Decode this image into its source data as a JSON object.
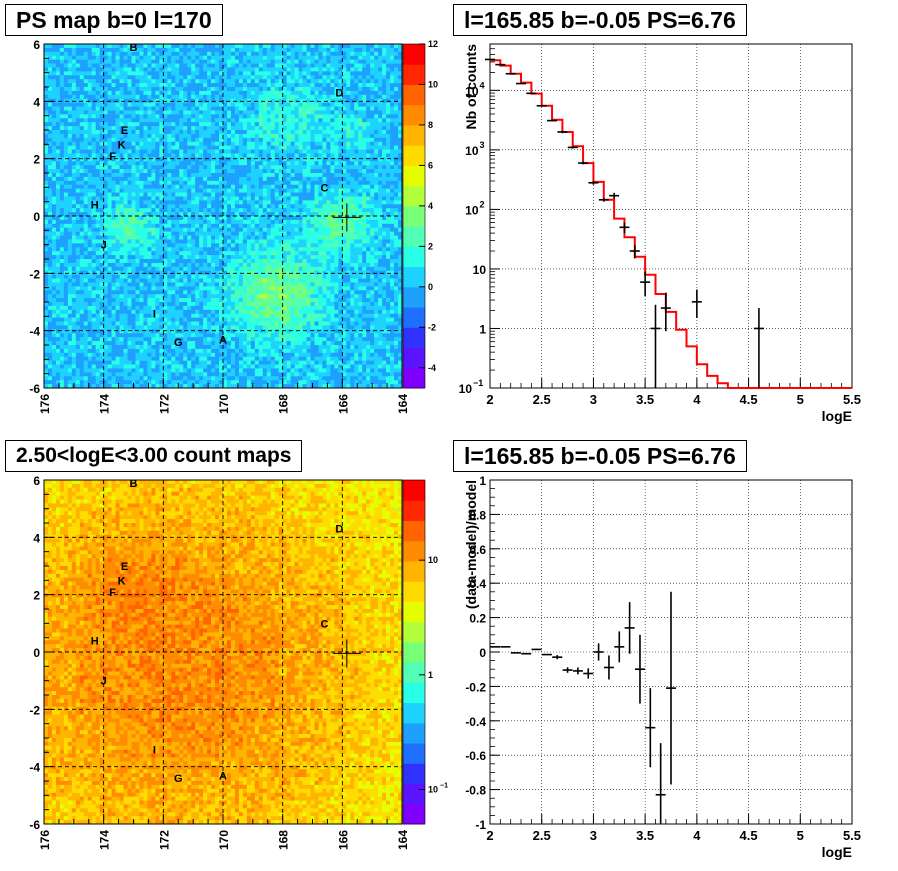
{
  "chart_data": [
    {
      "type": "heatmap",
      "title": "PS map b=0 l=170",
      "xlim": [
        176,
        164
      ],
      "ylim": [
        -6,
        6
      ],
      "x_ticks": [
        "176",
        "174",
        "172",
        "170",
        "168",
        "166",
        "164"
      ],
      "y_ticks": [
        "6",
        "4",
        "2",
        "0",
        "-2",
        "-4",
        "-6"
      ],
      "colorbar_ticks": [
        "12",
        "10",
        "8",
        "6",
        "4",
        "2",
        "0",
        "-2",
        "-4"
      ],
      "zlim": [
        -5,
        12
      ],
      "grid": true,
      "sources": [
        {
          "label": "A",
          "l": 170.0,
          "b": -4.3
        },
        {
          "label": "B",
          "l": 173.0,
          "b": 5.9
        },
        {
          "label": "C",
          "l": 166.6,
          "b": 1.0
        },
        {
          "label": "D",
          "l": 166.1,
          "b": 4.3
        },
        {
          "label": "E",
          "l": 173.3,
          "b": 3.0
        },
        {
          "label": "K",
          "l": 173.4,
          "b": 2.5
        },
        {
          "label": "F",
          "l": 173.7,
          "b": 2.1
        },
        {
          "label": "H",
          "l": 174.3,
          "b": 0.4
        },
        {
          "label": "J",
          "l": 174.0,
          "b": -1.0
        },
        {
          "label": "I",
          "l": 172.3,
          "b": -3.4
        },
        {
          "label": "G",
          "l": 171.5,
          "b": -4.4
        }
      ],
      "marker": {
        "l": 165.85,
        "b": -0.05
      }
    },
    {
      "type": "line",
      "title": "l=165.85 b=-0.05 PS=6.76",
      "xlabel": "logE",
      "ylabel": "Nb of counts",
      "xlim": [
        2,
        5.5
      ],
      "ylim": [
        0.1,
        60000
      ],
      "y_scale": "log",
      "x_ticks": [
        "2",
        "2.5",
        "3",
        "3.5",
        "4",
        "4.5",
        "5",
        "5.5"
      ],
      "y_ticks": [
        {
          "value": 10000,
          "base": "10",
          "exp": "4"
        },
        {
          "value": 1000,
          "base": "10",
          "exp": "3"
        },
        {
          "value": 100,
          "base": "10",
          "exp": "2"
        },
        {
          "value": 10,
          "base": "10",
          "exp": ""
        },
        {
          "value": 1,
          "base": "1",
          "exp": ""
        },
        {
          "value": 0.1,
          "base": "10",
          "exp": "−1"
        }
      ],
      "grid": true,
      "series": [
        {
          "kind": "histogram",
          "color": "#ff0000",
          "bin_edges": [
            2.0,
            2.1,
            2.2,
            2.3,
            2.4,
            2.5,
            2.6,
            2.7,
            2.8,
            2.9,
            3.0,
            3.1,
            3.2,
            3.3,
            3.4,
            3.5,
            3.6,
            3.7,
            3.8,
            3.9,
            4.0,
            4.1,
            4.2,
            4.3,
            5.5
          ],
          "values": [
            32000,
            26000,
            19000,
            13500,
            8800,
            5500,
            3200,
            2000,
            1150,
            600,
            290,
            145,
            70,
            34,
            16,
            8,
            3.8,
            1.9,
            0.95,
            0.5,
            0.25,
            0.16,
            0.12,
            0.1
          ]
        },
        {
          "kind": "points",
          "color": "#000000",
          "x": [
            2.0,
            2.1,
            2.2,
            2.3,
            2.4,
            2.5,
            2.6,
            2.7,
            2.8,
            2.9,
            3.0,
            3.1,
            3.2,
            3.3,
            3.4,
            3.5,
            3.6,
            3.7,
            3.8,
            4.0,
            4.6
          ],
          "y": [
            33000,
            27000,
            19000,
            13000,
            8900,
            5500,
            3100,
            2000,
            1100,
            600,
            280,
            145,
            170,
            50,
            20,
            6,
            1,
            2.2,
            0,
            2.8,
            1
          ],
          "y_low": [
            32800,
            26800,
            18800,
            12800,
            8700,
            5300,
            3000,
            1900,
            1050,
            570,
            260,
            135,
            150,
            40,
            15,
            3.5,
            0.1,
            0.9,
            0,
            1.5,
            0.1
          ],
          "y_high": [
            33200,
            27200,
            19200,
            13200,
            9100,
            5700,
            3200,
            2100,
            1150,
            630,
            300,
            155,
            190,
            60,
            25,
            9,
            2.5,
            4,
            0,
            4.5,
            2.2
          ]
        }
      ]
    },
    {
      "type": "heatmap",
      "title": "2.50<logE<3.00 count maps",
      "xlim": [
        176,
        164
      ],
      "ylim": [
        -6,
        6
      ],
      "x_ticks": [
        "176",
        "174",
        "172",
        "170",
        "168",
        "166",
        "164"
      ],
      "y_ticks": [
        "6",
        "4",
        "2",
        "0",
        "-2",
        "-4",
        "-6"
      ],
      "colorbar_ticks": [
        {
          "value": 10,
          "base": "10",
          "exp": ""
        },
        {
          "value": 1,
          "base": "1",
          "exp": ""
        },
        {
          "value": 0.1,
          "base": "10",
          "exp": "−1"
        }
      ],
      "z_scale": "log",
      "zlim": [
        0.05,
        50
      ],
      "grid": true,
      "sources": [
        {
          "label": "A",
          "l": 170.0,
          "b": -4.3
        },
        {
          "label": "B",
          "l": 173.0,
          "b": 5.9
        },
        {
          "label": "C",
          "l": 166.6,
          "b": 1.0
        },
        {
          "label": "D",
          "l": 166.1,
          "b": 4.3
        },
        {
          "label": "E",
          "l": 173.3,
          "b": 3.0
        },
        {
          "label": "K",
          "l": 173.4,
          "b": 2.5
        },
        {
          "label": "F",
          "l": 173.7,
          "b": 2.1
        },
        {
          "label": "H",
          "l": 174.3,
          "b": 0.4
        },
        {
          "label": "J",
          "l": 174.0,
          "b": -1.0
        },
        {
          "label": "I",
          "l": 172.3,
          "b": -3.4
        },
        {
          "label": "G",
          "l": 171.5,
          "b": -4.4
        }
      ],
      "marker": {
        "l": 165.85,
        "b": -0.05
      }
    },
    {
      "type": "scatter",
      "title": "l=165.85 b=-0.05 PS=6.76",
      "xlabel": "logE",
      "ylabel": "(data-model)/model",
      "xlim": [
        2,
        5.5
      ],
      "ylim": [
        -1,
        1
      ],
      "x_ticks": [
        "2",
        "2.5",
        "3",
        "3.5",
        "4",
        "4.5",
        "5",
        "5.5"
      ],
      "y_ticks": [
        "1",
        "0.8",
        "0.6",
        "0.4",
        "0.2",
        "0",
        "-0.2",
        "-0.4",
        "-0.6",
        "-0.8",
        "-1"
      ],
      "grid": true,
      "points": [
        {
          "x": 2.05,
          "y": 0.03,
          "err": 0.003
        },
        {
          "x": 2.15,
          "y": 0.03,
          "err": 0.004
        },
        {
          "x": 2.25,
          "y": -0.005,
          "err": 0.005
        },
        {
          "x": 2.35,
          "y": -0.01,
          "err": 0.006
        },
        {
          "x": 2.45,
          "y": 0.015,
          "err": 0.008
        },
        {
          "x": 2.55,
          "y": -0.015,
          "err": 0.01
        },
        {
          "x": 2.65,
          "y": -0.03,
          "err": 0.012
        },
        {
          "x": 2.75,
          "y": -0.105,
          "err": 0.016
        },
        {
          "x": 2.85,
          "y": -0.11,
          "err": 0.02
        },
        {
          "x": 2.95,
          "y": -0.125,
          "err": 0.03
        },
        {
          "x": 3.05,
          "y": 0.0,
          "err": 0.05
        },
        {
          "x": 3.15,
          "y": -0.09,
          "err": 0.07
        },
        {
          "x": 3.25,
          "y": 0.03,
          "err": 0.09
        },
        {
          "x": 3.35,
          "y": 0.14,
          "err": 0.15
        },
        {
          "x": 3.45,
          "y": -0.1,
          "err": 0.2
        },
        {
          "x": 3.55,
          "y": -0.44,
          "err": 0.23
        },
        {
          "x": 3.65,
          "y": -0.83,
          "err": 0.3
        },
        {
          "x": 3.75,
          "y": -0.21,
          "err": 0.56
        }
      ]
    }
  ]
}
